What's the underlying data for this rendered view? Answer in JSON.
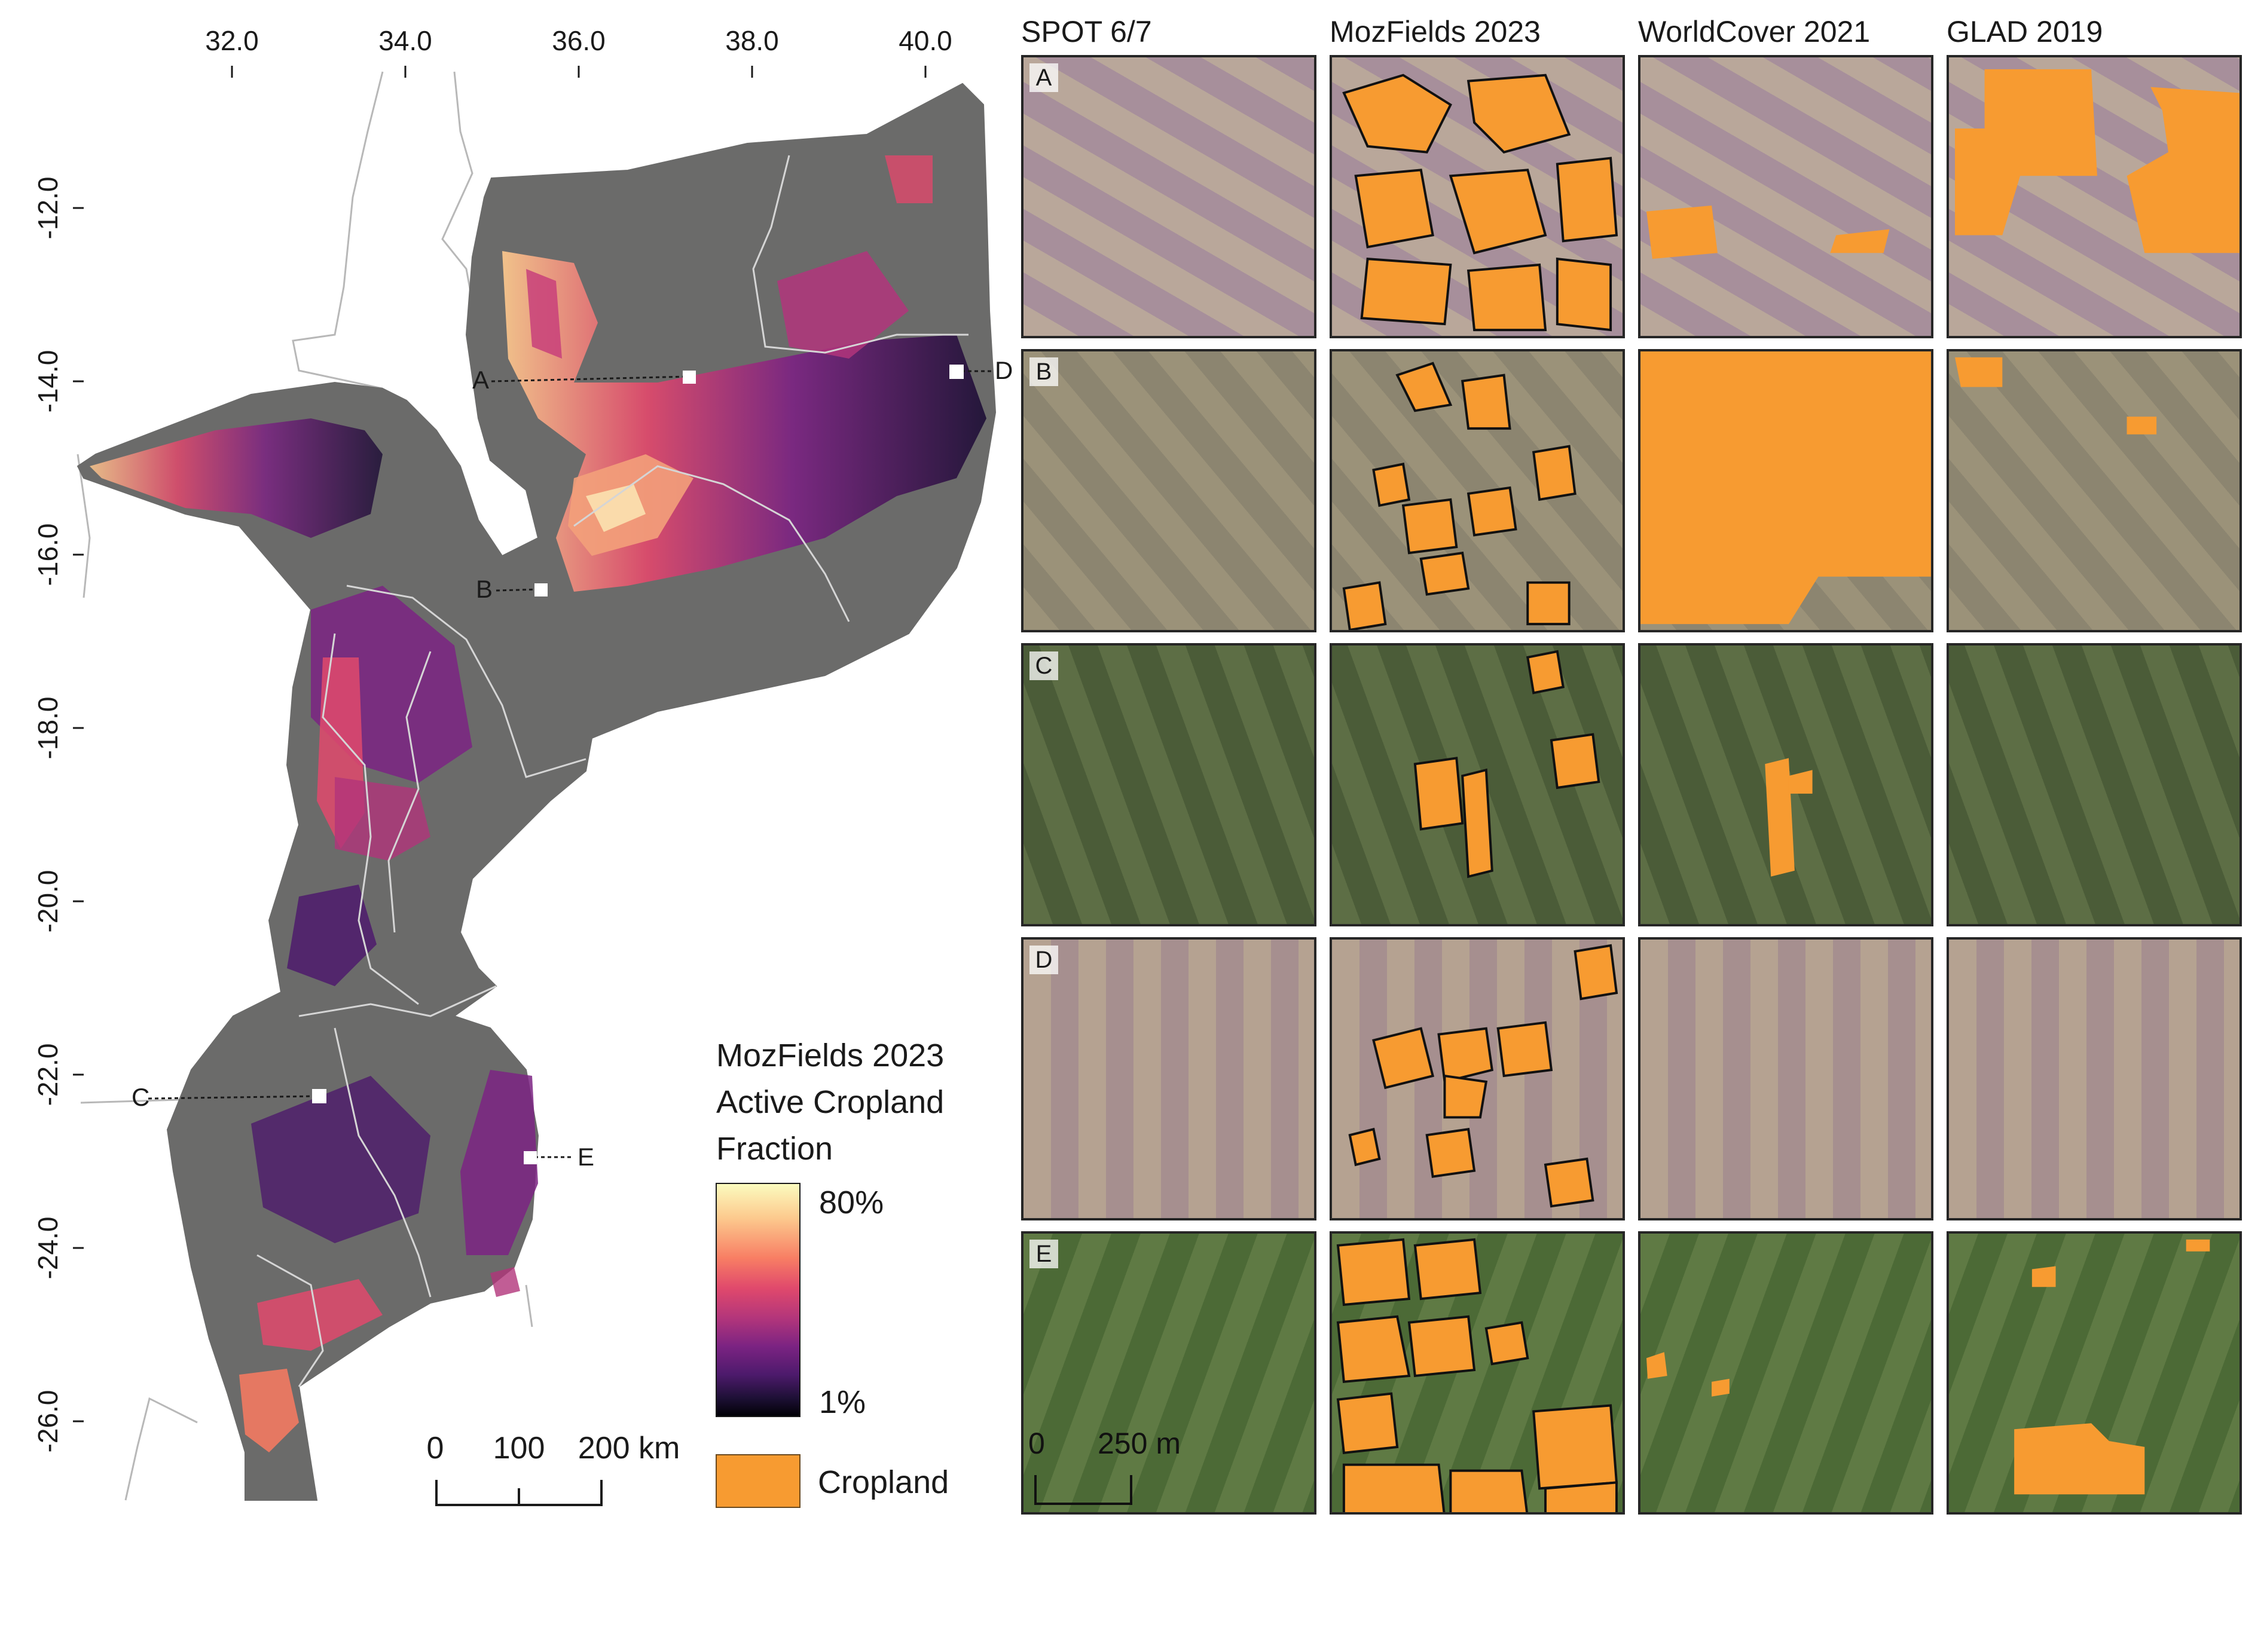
{
  "map": {
    "lon_ticks": [
      "32.0",
      "34.0",
      "36.0",
      "38.0",
      "40.0"
    ],
    "lat_ticks": [
      "-12.0",
      "-14.0",
      "-16.0",
      "-18.0",
      "-20.0",
      "-22.0",
      "-24.0",
      "-26.0"
    ],
    "site_labels": [
      "A",
      "B",
      "C",
      "D",
      "E"
    ],
    "scale_bar": {
      "ticks": [
        "0",
        "100",
        "200 km"
      ]
    },
    "colors": {
      "background_land": "#6b6b6a",
      "cropland": "#f79b31",
      "border": "#bdbdbd"
    }
  },
  "legend": {
    "title_lines": [
      "MozFields 2023",
      "Active Cropland",
      "Fraction"
    ],
    "max_label": "80%",
    "min_label": "1%",
    "cropland_label": "Cropland",
    "gradient": [
      "#fbfcbf",
      "#fcc98d",
      "#f87e64",
      "#e0496c",
      "#b2357b",
      "#7b2382",
      "#4d1a6c",
      "#1e1036",
      "#000004"
    ]
  },
  "columns": [
    "SPOT 6/7",
    "MozFields 2023",
    "WorldCover 2021",
    "GLAD 2019"
  ],
  "rows": [
    "A",
    "B",
    "C",
    "D",
    "E"
  ],
  "image_scale": {
    "zero": "0",
    "label": "250 m"
  }
}
